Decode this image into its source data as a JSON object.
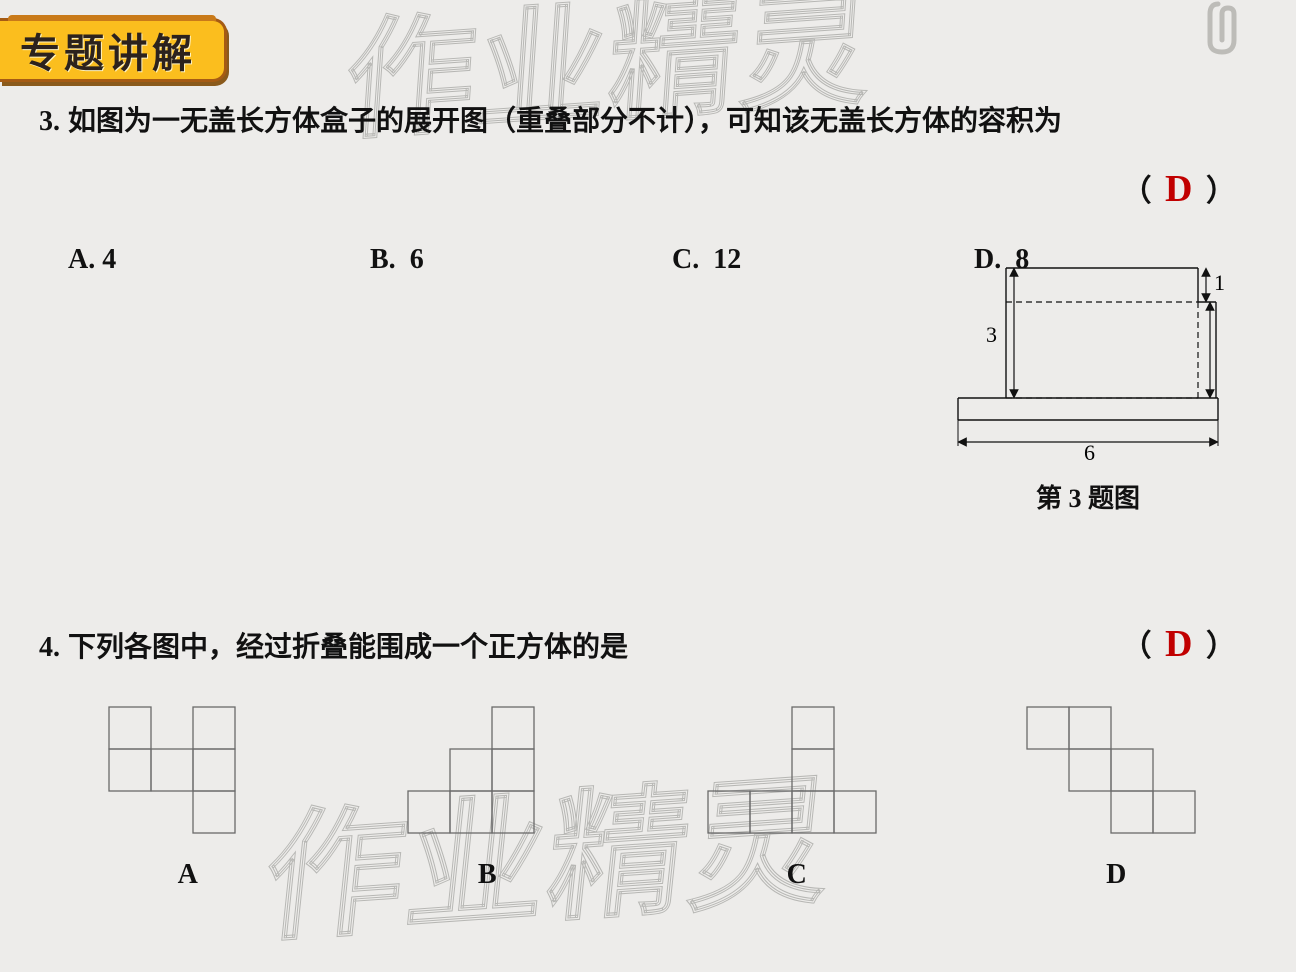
{
  "header": {
    "title": "专题讲解"
  },
  "watermark": "作业精灵",
  "q3": {
    "number": "3.",
    "text": "如图为一无盖长方体盒子的展开图（重叠部分不计），可知该无盖长方体的容积为",
    "paren_open": "（",
    "paren_close": "）",
    "answer": "D",
    "options": {
      "A": {
        "label": "A.",
        "value": "4"
      },
      "B": {
        "label": "B.",
        "value": "6"
      },
      "C": {
        "label": "C.",
        "value": "12"
      },
      "D": {
        "label": "D.",
        "value": "8"
      }
    },
    "figure": {
      "outer_width_label": "6",
      "height_label": "3",
      "top_seg_label": "1",
      "caption": "第 3 题图",
      "stroke": "#111111",
      "stroke_width": 1.4,
      "dash": "6,4"
    }
  },
  "q4": {
    "number": "4.",
    "text": "下列各图中，经过折叠能围成一个正方体的是",
    "paren_open": "（",
    "paren_close": "）",
    "answer": "D",
    "net": {
      "cell": 42,
      "stroke": "#6a6a6a",
      "stroke_width": 1.3,
      "labels": {
        "A": "A",
        "B": "B",
        "C": "C",
        "D": "D"
      },
      "A": [
        [
          0,
          0
        ],
        [
          2,
          0
        ],
        [
          0,
          1
        ],
        [
          1,
          1
        ],
        [
          2,
          1
        ],
        [
          2,
          2
        ]
      ],
      "B": [
        [
          2,
          0
        ],
        [
          1,
          1
        ],
        [
          2,
          1
        ],
        [
          0,
          2
        ],
        [
          1,
          2
        ],
        [
          2,
          2
        ]
      ],
      "C": [
        [
          2,
          0
        ],
        [
          2,
          1
        ],
        [
          2,
          2
        ],
        [
          0,
          2
        ],
        [
          1,
          2
        ],
        [
          3,
          2
        ]
      ],
      "D": [
        [
          0,
          0
        ],
        [
          1,
          0
        ],
        [
          1,
          1
        ],
        [
          2,
          1
        ],
        [
          2,
          2
        ],
        [
          3,
          2
        ]
      ]
    }
  },
  "colors": {
    "answer_red": "#c10000",
    "tab_yellow": "#fbbe1e",
    "tab_border": "#a55b14",
    "watermark_stroke": "#b7b7b4",
    "background": "#edecea"
  }
}
